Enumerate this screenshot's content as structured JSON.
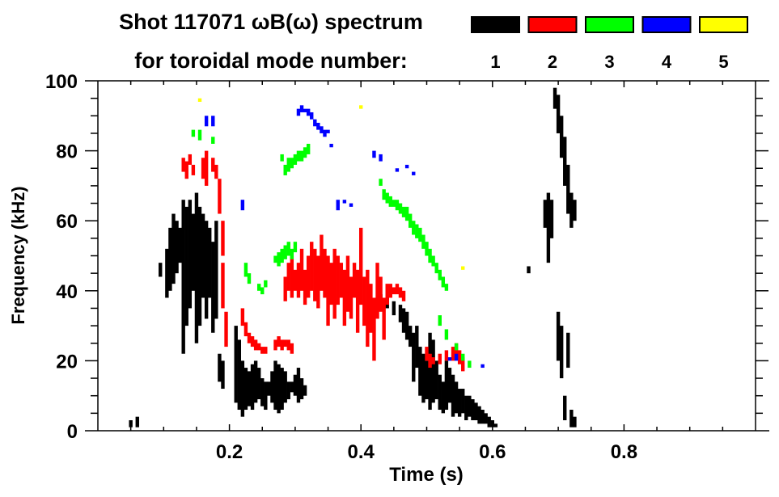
{
  "chart_data": {
    "type": "scatter",
    "title": "Shot 117071 ωB(ω) spectrum",
    "legend_title": "for toroidal mode number:",
    "legend_placement": "top-right",
    "xlabel": "Time (s)",
    "ylabel": "Frequency (kHz)",
    "xlim": [
      0,
      1.0
    ],
    "ylim": [
      0,
      100
    ],
    "xticks": [
      0.2,
      0.4,
      0.6,
      0.8
    ],
    "xtick_labels": [
      "0.2",
      "0.4",
      "0.6",
      "0.8"
    ],
    "yticks": [
      0,
      20,
      40,
      60,
      80,
      100
    ],
    "ytick_labels": [
      "0",
      "20",
      "40",
      "60",
      "80",
      "100"
    ],
    "x_minor_step": 0.05,
    "y_minor_step": 5,
    "grid": false,
    "series": [
      {
        "name": "1",
        "color": "#000000",
        "segments": [
          [
            0.05,
            1,
            3
          ],
          [
            0.06,
            1,
            4
          ],
          [
            0.095,
            44,
            48
          ],
          [
            0.105,
            38,
            52
          ],
          [
            0.11,
            40,
            58
          ],
          [
            0.115,
            42,
            62
          ],
          [
            0.12,
            45,
            60
          ],
          [
            0.125,
            48,
            58
          ],
          [
            0.13,
            22,
            66
          ],
          [
            0.135,
            30,
            64
          ],
          [
            0.14,
            35,
            66
          ],
          [
            0.145,
            40,
            62
          ],
          [
            0.15,
            25,
            68
          ],
          [
            0.155,
            30,
            64
          ],
          [
            0.16,
            38,
            62
          ],
          [
            0.165,
            32,
            60
          ],
          [
            0.17,
            38,
            58
          ],
          [
            0.175,
            28,
            54
          ],
          [
            0.18,
            32,
            60
          ],
          [
            0.185,
            14,
            22
          ],
          [
            0.19,
            12,
            20
          ],
          [
            0.21,
            8,
            30
          ],
          [
            0.215,
            6,
            26
          ],
          [
            0.22,
            4,
            20
          ],
          [
            0.225,
            6,
            18
          ],
          [
            0.23,
            7,
            17
          ],
          [
            0.235,
            6,
            19
          ],
          [
            0.24,
            8,
            20
          ],
          [
            0.245,
            9,
            18
          ],
          [
            0.25,
            7,
            15
          ],
          [
            0.255,
            6,
            14
          ],
          [
            0.26,
            10,
            14
          ],
          [
            0.265,
            8,
            17
          ],
          [
            0.27,
            6,
            20
          ],
          [
            0.275,
            5,
            19
          ],
          [
            0.28,
            6,
            18
          ],
          [
            0.285,
            8,
            17
          ],
          [
            0.29,
            9,
            14
          ],
          [
            0.295,
            11,
            14
          ],
          [
            0.3,
            10,
            16
          ],
          [
            0.305,
            8,
            18
          ],
          [
            0.31,
            9,
            15
          ],
          [
            0.315,
            10,
            13
          ],
          [
            0.43,
            36,
            39
          ],
          [
            0.44,
            35,
            38
          ],
          [
            0.45,
            33,
            37
          ],
          [
            0.46,
            31,
            36
          ],
          [
            0.465,
            28,
            35
          ],
          [
            0.47,
            26,
            34
          ],
          [
            0.475,
            24,
            30
          ],
          [
            0.48,
            14,
            28
          ],
          [
            0.485,
            18,
            30
          ],
          [
            0.49,
            10,
            24
          ],
          [
            0.495,
            8,
            22
          ],
          [
            0.5,
            9,
            20
          ],
          [
            0.505,
            6,
            28
          ],
          [
            0.51,
            8,
            26
          ],
          [
            0.515,
            9,
            20
          ],
          [
            0.52,
            6,
            16
          ],
          [
            0.525,
            5,
            14
          ],
          [
            0.53,
            6,
            20
          ],
          [
            0.535,
            8,
            18
          ],
          [
            0.54,
            4,
            16
          ],
          [
            0.545,
            5,
            14
          ],
          [
            0.55,
            4,
            12
          ],
          [
            0.555,
            5,
            12
          ],
          [
            0.56,
            3,
            10
          ],
          [
            0.565,
            4,
            10
          ],
          [
            0.57,
            3,
            9
          ],
          [
            0.575,
            3,
            8
          ],
          [
            0.58,
            2,
            7
          ],
          [
            0.585,
            2,
            6
          ],
          [
            0.59,
            2,
            5
          ],
          [
            0.595,
            1,
            4
          ],
          [
            0.6,
            1,
            3
          ],
          [
            0.605,
            1,
            2
          ],
          [
            0.655,
            45,
            47
          ],
          [
            0.68,
            58,
            66
          ],
          [
            0.685,
            48,
            68
          ],
          [
            0.69,
            55,
            66
          ],
          [
            0.695,
            92,
            98
          ],
          [
            0.7,
            85,
            96
          ],
          [
            0.705,
            78,
            90
          ],
          [
            0.71,
            70,
            84
          ],
          [
            0.715,
            62,
            76
          ],
          [
            0.72,
            58,
            68
          ],
          [
            0.725,
            60,
            66
          ],
          [
            0.7,
            20,
            34
          ],
          [
            0.705,
            15,
            30
          ],
          [
            0.71,
            3,
            10
          ],
          [
            0.715,
            18,
            28
          ],
          [
            0.72,
            1,
            6
          ],
          [
            0.725,
            1,
            4
          ]
        ]
      },
      {
        "name": "2",
        "color": "#ff0000",
        "segments": [
          [
            0.13,
            74,
            78
          ],
          [
            0.135,
            72,
            77
          ],
          [
            0.14,
            76,
            79
          ],
          [
            0.145,
            73,
            76
          ],
          [
            0.16,
            72,
            78
          ],
          [
            0.165,
            70,
            80
          ],
          [
            0.175,
            74,
            78
          ],
          [
            0.18,
            72,
            76
          ],
          [
            0.185,
            62,
            72
          ],
          [
            0.19,
            50,
            60
          ],
          [
            0.19,
            35,
            48
          ],
          [
            0.195,
            24,
            34
          ],
          [
            0.22,
            30,
            35
          ],
          [
            0.225,
            27,
            31
          ],
          [
            0.23,
            25,
            28
          ],
          [
            0.235,
            24,
            27
          ],
          [
            0.24,
            23,
            26
          ],
          [
            0.245,
            23,
            25
          ],
          [
            0.25,
            22,
            24
          ],
          [
            0.255,
            22,
            24
          ],
          [
            0.27,
            23,
            26
          ],
          [
            0.275,
            24,
            27
          ],
          [
            0.28,
            23,
            26
          ],
          [
            0.285,
            24,
            26
          ],
          [
            0.29,
            23,
            26
          ],
          [
            0.295,
            22,
            25
          ],
          [
            0.285,
            37,
            44
          ],
          [
            0.29,
            40,
            48
          ],
          [
            0.295,
            38,
            50
          ],
          [
            0.3,
            40,
            46
          ],
          [
            0.305,
            38,
            48
          ],
          [
            0.31,
            40,
            52
          ],
          [
            0.315,
            36,
            46
          ],
          [
            0.32,
            38,
            50
          ],
          [
            0.325,
            40,
            54
          ],
          [
            0.33,
            37,
            52
          ],
          [
            0.335,
            35,
            50
          ],
          [
            0.34,
            40,
            56
          ],
          [
            0.345,
            38,
            52
          ],
          [
            0.35,
            30,
            50
          ],
          [
            0.355,
            36,
            48
          ],
          [
            0.36,
            32,
            52
          ],
          [
            0.365,
            36,
            50
          ],
          [
            0.37,
            38,
            48
          ],
          [
            0.375,
            30,
            46
          ],
          [
            0.38,
            34,
            50
          ],
          [
            0.385,
            32,
            44
          ],
          [
            0.39,
            38,
            48
          ],
          [
            0.395,
            28,
            46
          ],
          [
            0.4,
            36,
            58
          ],
          [
            0.405,
            30,
            44
          ],
          [
            0.41,
            24,
            46
          ],
          [
            0.415,
            28,
            42
          ],
          [
            0.42,
            20,
            38
          ],
          [
            0.425,
            32,
            48
          ],
          [
            0.43,
            34,
            44
          ],
          [
            0.435,
            26,
            38
          ],
          [
            0.44,
            36,
            42
          ],
          [
            0.445,
            38,
            42
          ],
          [
            0.45,
            39,
            41
          ],
          [
            0.455,
            39,
            42
          ],
          [
            0.46,
            38,
            41
          ],
          [
            0.465,
            37,
            40
          ],
          [
            0.5,
            20,
            24
          ],
          [
            0.505,
            18,
            22
          ],
          [
            0.51,
            19,
            21
          ],
          [
            0.52,
            19,
            22
          ],
          [
            0.53,
            20,
            23
          ],
          [
            0.54,
            20,
            24
          ],
          [
            0.545,
            21,
            25
          ],
          [
            0.55,
            19,
            23
          ],
          [
            0.555,
            17,
            21
          ]
        ]
      },
      {
        "name": "3",
        "color": "#00ff00",
        "segments": [
          [
            0.145,
            84,
            86
          ],
          [
            0.155,
            83,
            86
          ],
          [
            0.175,
            82,
            84
          ],
          [
            0.28,
            77,
            79
          ],
          [
            0.285,
            73,
            76
          ],
          [
            0.29,
            74,
            78
          ],
          [
            0.295,
            75,
            78
          ],
          [
            0.3,
            76,
            79
          ],
          [
            0.305,
            77,
            80
          ],
          [
            0.31,
            77,
            80
          ],
          [
            0.315,
            78,
            81
          ],
          [
            0.32,
            79,
            82
          ],
          [
            0.27,
            48,
            50
          ],
          [
            0.275,
            47,
            51
          ],
          [
            0.28,
            48,
            52
          ],
          [
            0.285,
            49,
            53
          ],
          [
            0.29,
            50,
            54
          ],
          [
            0.295,
            49,
            52
          ],
          [
            0.3,
            51,
            54
          ],
          [
            0.225,
            44,
            48
          ],
          [
            0.23,
            42,
            45
          ],
          [
            0.245,
            40,
            42
          ],
          [
            0.25,
            39,
            41
          ],
          [
            0.255,
            41,
            43
          ],
          [
            0.43,
            70,
            72
          ],
          [
            0.435,
            66,
            69
          ],
          [
            0.44,
            65,
            68
          ],
          [
            0.445,
            64,
            67
          ],
          [
            0.45,
            64,
            66
          ],
          [
            0.455,
            63,
            66
          ],
          [
            0.46,
            62,
            65
          ],
          [
            0.465,
            61,
            64
          ],
          [
            0.47,
            60,
            64
          ],
          [
            0.475,
            58,
            62
          ],
          [
            0.48,
            56,
            60
          ],
          [
            0.485,
            55,
            59
          ],
          [
            0.49,
            54,
            58
          ],
          [
            0.495,
            52,
            56
          ],
          [
            0.5,
            50,
            54
          ],
          [
            0.505,
            48,
            52
          ],
          [
            0.51,
            47,
            50
          ],
          [
            0.515,
            45,
            48
          ],
          [
            0.52,
            43,
            46
          ],
          [
            0.525,
            41,
            44
          ],
          [
            0.53,
            40,
            42
          ],
          [
            0.52,
            30,
            33
          ],
          [
            0.53,
            26,
            29
          ],
          [
            0.545,
            23,
            25
          ],
          [
            0.555,
            20,
            22
          ],
          [
            0.565,
            18,
            20
          ]
        ]
      },
      {
        "name": "4",
        "color": "#0000ff",
        "segments": [
          [
            0.165,
            87,
            90
          ],
          [
            0.175,
            87,
            90
          ],
          [
            0.305,
            90,
            92
          ],
          [
            0.31,
            91,
            93
          ],
          [
            0.315,
            91,
            92
          ],
          [
            0.32,
            90,
            92
          ],
          [
            0.325,
            89,
            91
          ],
          [
            0.33,
            87,
            89
          ],
          [
            0.335,
            86,
            88
          ],
          [
            0.34,
            85,
            87
          ],
          [
            0.345,
            84,
            86
          ],
          [
            0.35,
            85,
            86
          ],
          [
            0.355,
            81,
            82
          ],
          [
            0.365,
            63,
            66
          ],
          [
            0.375,
            65,
            66
          ],
          [
            0.385,
            64,
            65
          ],
          [
            0.22,
            63,
            66
          ],
          [
            0.42,
            78,
            80
          ],
          [
            0.43,
            77,
            79
          ],
          [
            0.455,
            74,
            75
          ],
          [
            0.47,
            75,
            76
          ],
          [
            0.48,
            73,
            74
          ],
          [
            0.535,
            20,
            21
          ],
          [
            0.545,
            20,
            22
          ],
          [
            0.585,
            18,
            19
          ]
        ]
      },
      {
        "name": "5",
        "color": "#ffff00",
        "segments": [
          [
            0.155,
            94,
            95
          ],
          [
            0.4,
            92,
            93
          ],
          [
            0.555,
            46,
            47
          ]
        ]
      }
    ]
  }
}
